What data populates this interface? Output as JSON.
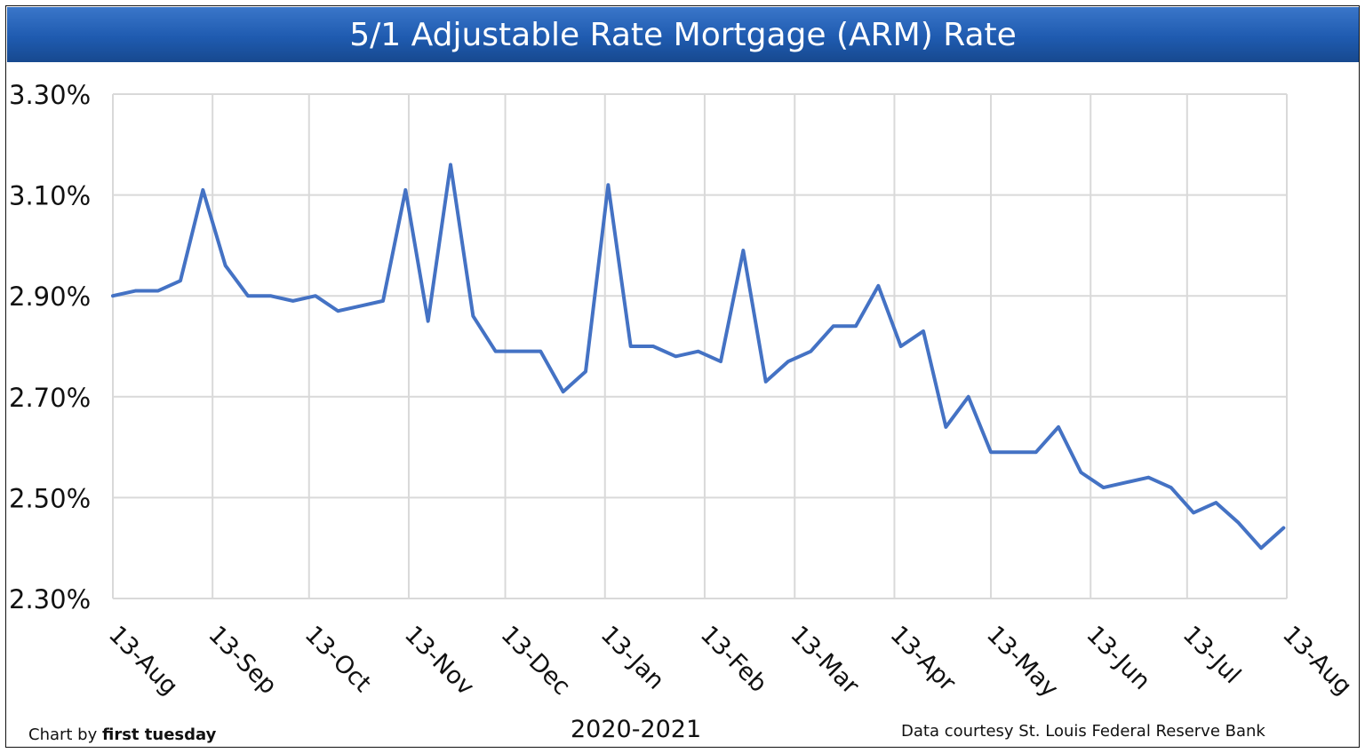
{
  "chart_data": {
    "type": "line",
    "title": "5/1 Adjustable Rate Mortgage (ARM) Rate",
    "xlabel": "2020-2021",
    "ylabel": "",
    "y_tick_labels": [
      "3.30%",
      "3.10%",
      "2.90%",
      "2.70%",
      "2.50%",
      "2.30%"
    ],
    "ylim": [
      2.3,
      3.3
    ],
    "y_unit": "%",
    "x_tick_labels": [
      "13-Aug",
      "13-Sep",
      "13-Oct",
      "13-Nov",
      "13-Dec",
      "13-Jan",
      "13-Feb",
      "13-Mar",
      "13-Apr",
      "13-May",
      "13-Jun",
      "13-Jul",
      "13-Aug"
    ],
    "x_tick_dates": [
      "2020-08-13",
      "2020-09-13",
      "2020-10-13",
      "2020-11-13",
      "2020-12-13",
      "2021-01-13",
      "2021-02-13",
      "2021-03-13",
      "2021-04-13",
      "2021-05-13",
      "2021-06-13",
      "2021-07-13",
      "2021-08-13"
    ],
    "grid": true,
    "line_color": "#4472c4",
    "series": [
      {
        "start_date": "2020-08-13",
        "frequency": "weekly",
        "values": [
          2.9,
          2.91,
          2.91,
          2.93,
          3.11,
          2.96,
          2.9,
          2.9,
          2.89,
          2.9,
          2.87,
          2.88,
          2.89,
          3.11,
          2.85,
          3.16,
          2.86,
          2.79,
          2.79,
          2.79,
          2.71,
          2.75,
          3.12,
          2.8,
          2.8,
          2.78,
          2.79,
          2.77,
          2.99,
          2.73,
          2.77,
          2.79,
          2.84,
          2.84,
          2.92,
          2.8,
          2.83,
          2.64,
          2.7,
          2.59,
          2.59,
          2.59,
          2.64,
          2.55,
          2.52,
          2.53,
          2.54,
          2.52,
          2.47,
          2.49,
          2.45,
          2.4,
          2.44
        ]
      }
    ]
  },
  "footer": {
    "credit_prefix": "Chart by ",
    "credit_brand": "first tuesday",
    "source": "Data courtesy St. Louis Federal Reserve Bank"
  },
  "colors": {
    "title_bar": "#1f5bb0",
    "grid": "#d9d9d9",
    "line": "#4472c4"
  }
}
